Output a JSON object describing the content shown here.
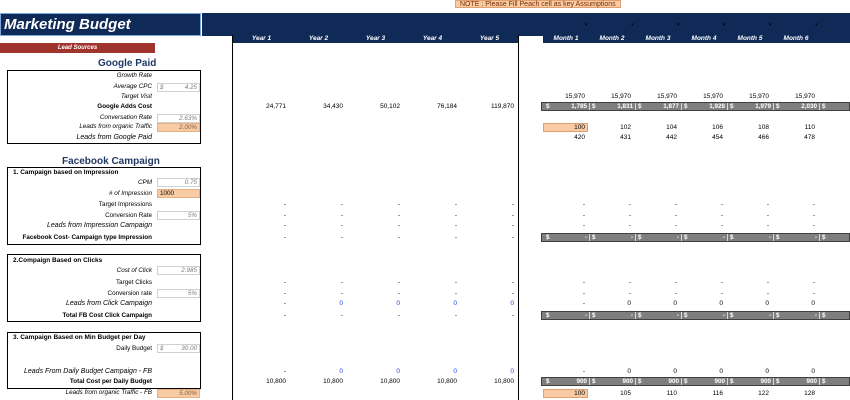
{
  "sheet": {
    "title": "Marketing Budget",
    "note": "NOTE : Please Fill Peach cell as key Assumptions",
    "lead_sources": "Lead Sources"
  },
  "years": [
    "Year 1",
    "Year 2",
    "Year 3",
    "Year 4",
    "Year 5"
  ],
  "months": [
    "Month 1",
    "Month 2",
    "Month 3",
    "Month 4",
    "Month 5",
    "Month 6"
  ],
  "google": {
    "title": "Google Paid",
    "labels": [
      "Growth Rate",
      "Average CPC",
      "Target Visit",
      "Google Adds Cost",
      "Conversation Rate",
      "Leads from organic Traffic",
      "Leads from Google Paid"
    ],
    "cpc_currency": "$",
    "cpc": "4.25",
    "conversion_rate": "2.63%",
    "organic_rate": "2.00%",
    "target_visit_months": [
      "15,970",
      "15,970",
      "15,970",
      "15,970",
      "15,970",
      "15,970"
    ],
    "adds_cost_years": [
      "24,771",
      "34,430",
      "50,102",
      "76,184",
      "119,870"
    ],
    "adds_cost_months": [
      "1,785",
      "1,831",
      "1,877",
      "1,928",
      "1,979",
      "2,030"
    ],
    "organic_months": [
      "100",
      "102",
      "104",
      "106",
      "108",
      "110"
    ],
    "paid_months": [
      "420",
      "431",
      "442",
      "454",
      "466",
      "478"
    ]
  },
  "facebook": {
    "title": "Facebook Campaign",
    "impression": {
      "header": "1. Campaign based on Impression",
      "labels": [
        "CPM",
        "# of Impression",
        "Target Impressions",
        "Conversion Rate",
        "Leads from Impression Campaign",
        "Facebook Cost- Campaign type Impression"
      ],
      "cpm": "0.75",
      "num_impressions": "1000",
      "conversion_rate": "5%"
    },
    "clicks": {
      "header": "2.Compaign Based on Clicks",
      "labels": [
        "Cost  of Click",
        "Target Clicks",
        "Conversion rate",
        "Leads from Click Campaign",
        "Total FB Cost Click Campaign"
      ],
      "cost_of_click": "2.985",
      "conversion_rate": "5%"
    },
    "daily": {
      "header": "3. Campaign Based on Min Budget per Day",
      "labels": [
        "Daily Budget",
        "Leads From Daily Budget Campaign - FB",
        "Total Cost per Daily Budget",
        "Leads from organic Traffic - FB"
      ],
      "daily_budget_currency": "$",
      "daily_budget": "30.00",
      "organic_rate": "5.00%",
      "total_cost_years": [
        "10,800",
        "10,800",
        "10,800",
        "10,800",
        "10,800"
      ],
      "total_cost_months": [
        "900",
        "900",
        "900",
        "900",
        "900",
        "900"
      ],
      "organic_months": [
        "100",
        "105",
        "110",
        "116",
        "122",
        "128"
      ]
    }
  },
  "symbols": {
    "dash": "-",
    "zero": "0",
    "dollar": "$"
  }
}
